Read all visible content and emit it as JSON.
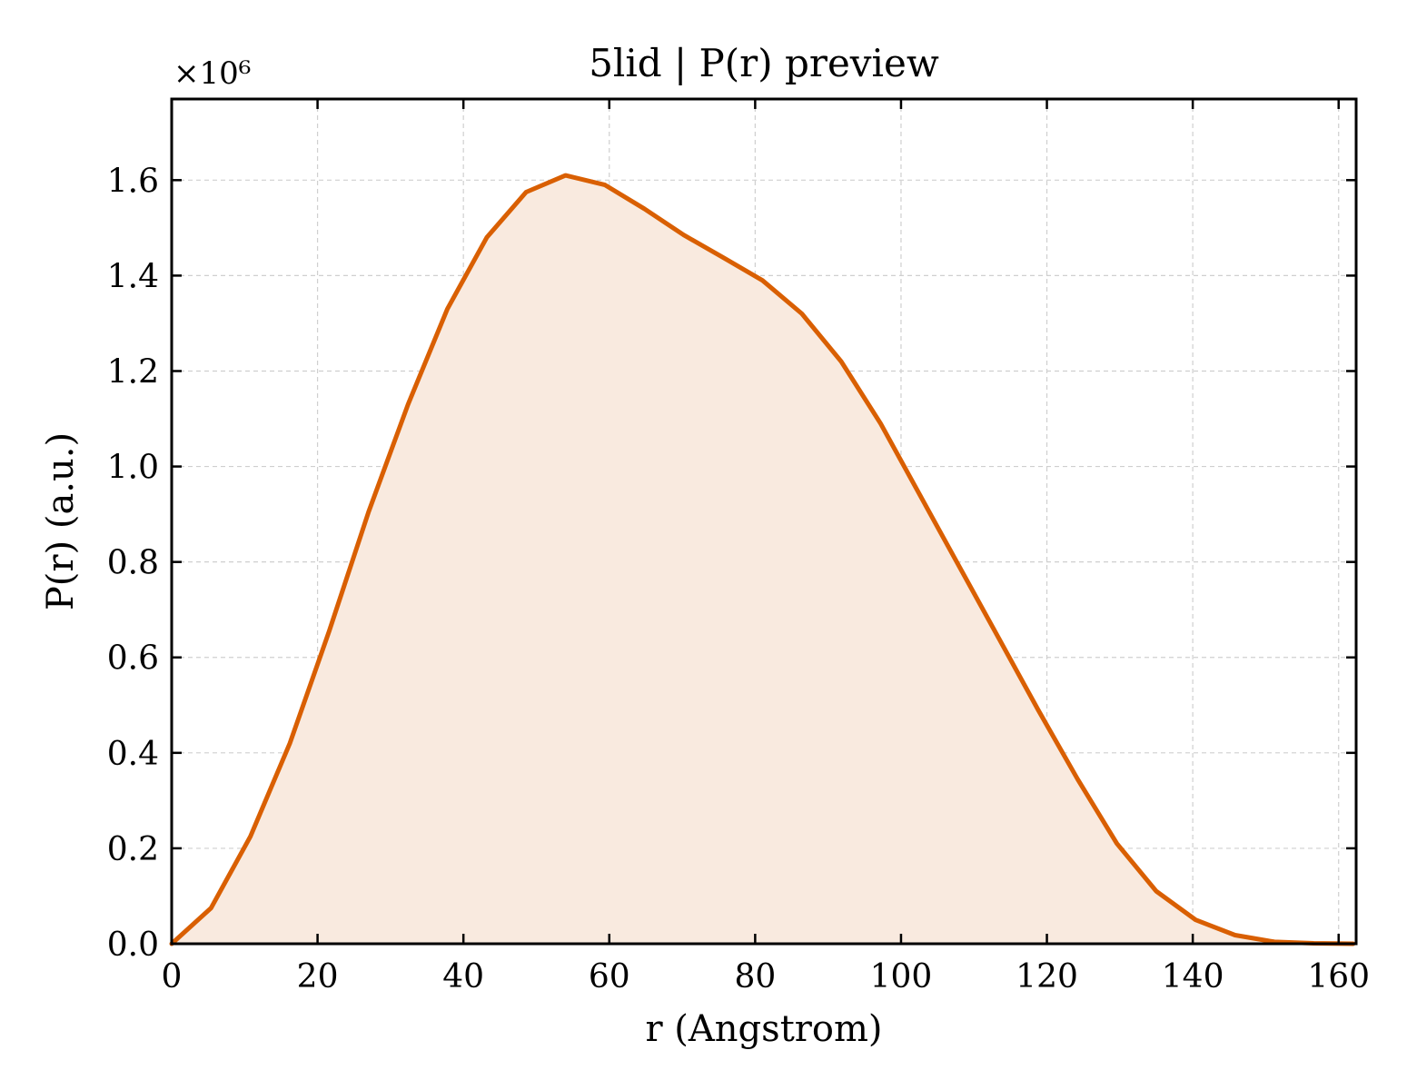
{
  "chart_data": {
    "type": "area",
    "title": "5lid | P(r) preview",
    "xlabel": "r (Angstrom)",
    "ylabel": "P(r) (a.u.)",
    "y_multiplier_label": "×10⁶",
    "xlim": [
      0,
      162.4
    ],
    "ylim": [
      0,
      1.77
    ],
    "xticks": [
      0,
      20,
      40,
      60,
      80,
      100,
      120,
      140,
      160
    ],
    "yticks": [
      0.0,
      0.2,
      0.4,
      0.6,
      0.8,
      1.0,
      1.2,
      1.4,
      1.6
    ],
    "xtick_labels": [
      "0",
      "20",
      "40",
      "60",
      "80",
      "100",
      "120",
      "140",
      "160"
    ],
    "ytick_labels": [
      "0.0",
      "0.2",
      "0.4",
      "0.6",
      "0.8",
      "1.0",
      "1.2",
      "1.4",
      "1.6"
    ],
    "grid": true,
    "line_color": "#d95f02",
    "fill_color": "#f9eadf",
    "series": [
      {
        "x": [
          0,
          5.4,
          10.8,
          16.2,
          21.6,
          27.0,
          32.4,
          37.8,
          43.2,
          48.6,
          54.0,
          59.4,
          64.8,
          70.2,
          75.6,
          81.0,
          86.4,
          91.8,
          97.2,
          102.6,
          108.0,
          113.4,
          118.8,
          124.2,
          129.6,
          135.0,
          140.4,
          145.8,
          151.2,
          156.6,
          162.0
        ],
        "y": [
          0.0,
          0.075,
          0.225,
          0.42,
          0.655,
          0.905,
          1.13,
          1.33,
          1.48,
          1.575,
          1.61,
          1.59,
          1.54,
          1.485,
          1.438,
          1.39,
          1.32,
          1.22,
          1.09,
          0.94,
          0.79,
          0.64,
          0.49,
          0.345,
          0.21,
          0.11,
          0.05,
          0.018,
          0.004,
          0.001,
          0.0
        ]
      }
    ]
  }
}
